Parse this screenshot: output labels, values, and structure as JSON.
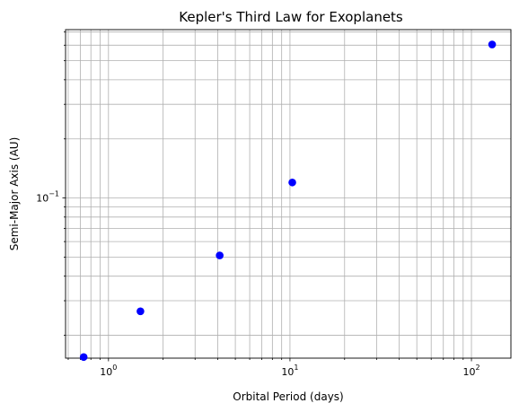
{
  "chart_data": {
    "type": "scatter",
    "title": "Kepler's Third Law for Exoplanets",
    "xlabel": "Orbital Period (days)",
    "ylabel": "Semi-Major Axis (AU)",
    "xscale": "log",
    "yscale": "log",
    "xlim": [
      0.58,
      165
    ],
    "ylim": [
      0.0153,
      0.72
    ],
    "grid": true,
    "grid_which": "both",
    "marker_color": "#0000ff",
    "x_ticks": [
      {
        "value": 1,
        "base": "10",
        "exp": "0"
      },
      {
        "value": 10,
        "base": "10",
        "exp": "1"
      },
      {
        "value": 100,
        "base": "10",
        "exp": "2"
      }
    ],
    "y_ticks": [
      {
        "value": 0.1,
        "base": "10",
        "exp": "−1"
      }
    ],
    "points": [
      {
        "x": 0.73,
        "y": 0.0155
      },
      {
        "x": 1.5,
        "y": 0.0265
      },
      {
        "x": 4.1,
        "y": 0.051
      },
      {
        "x": 10.3,
        "y": 0.12
      },
      {
        "x": 130,
        "y": 0.605
      }
    ]
  }
}
